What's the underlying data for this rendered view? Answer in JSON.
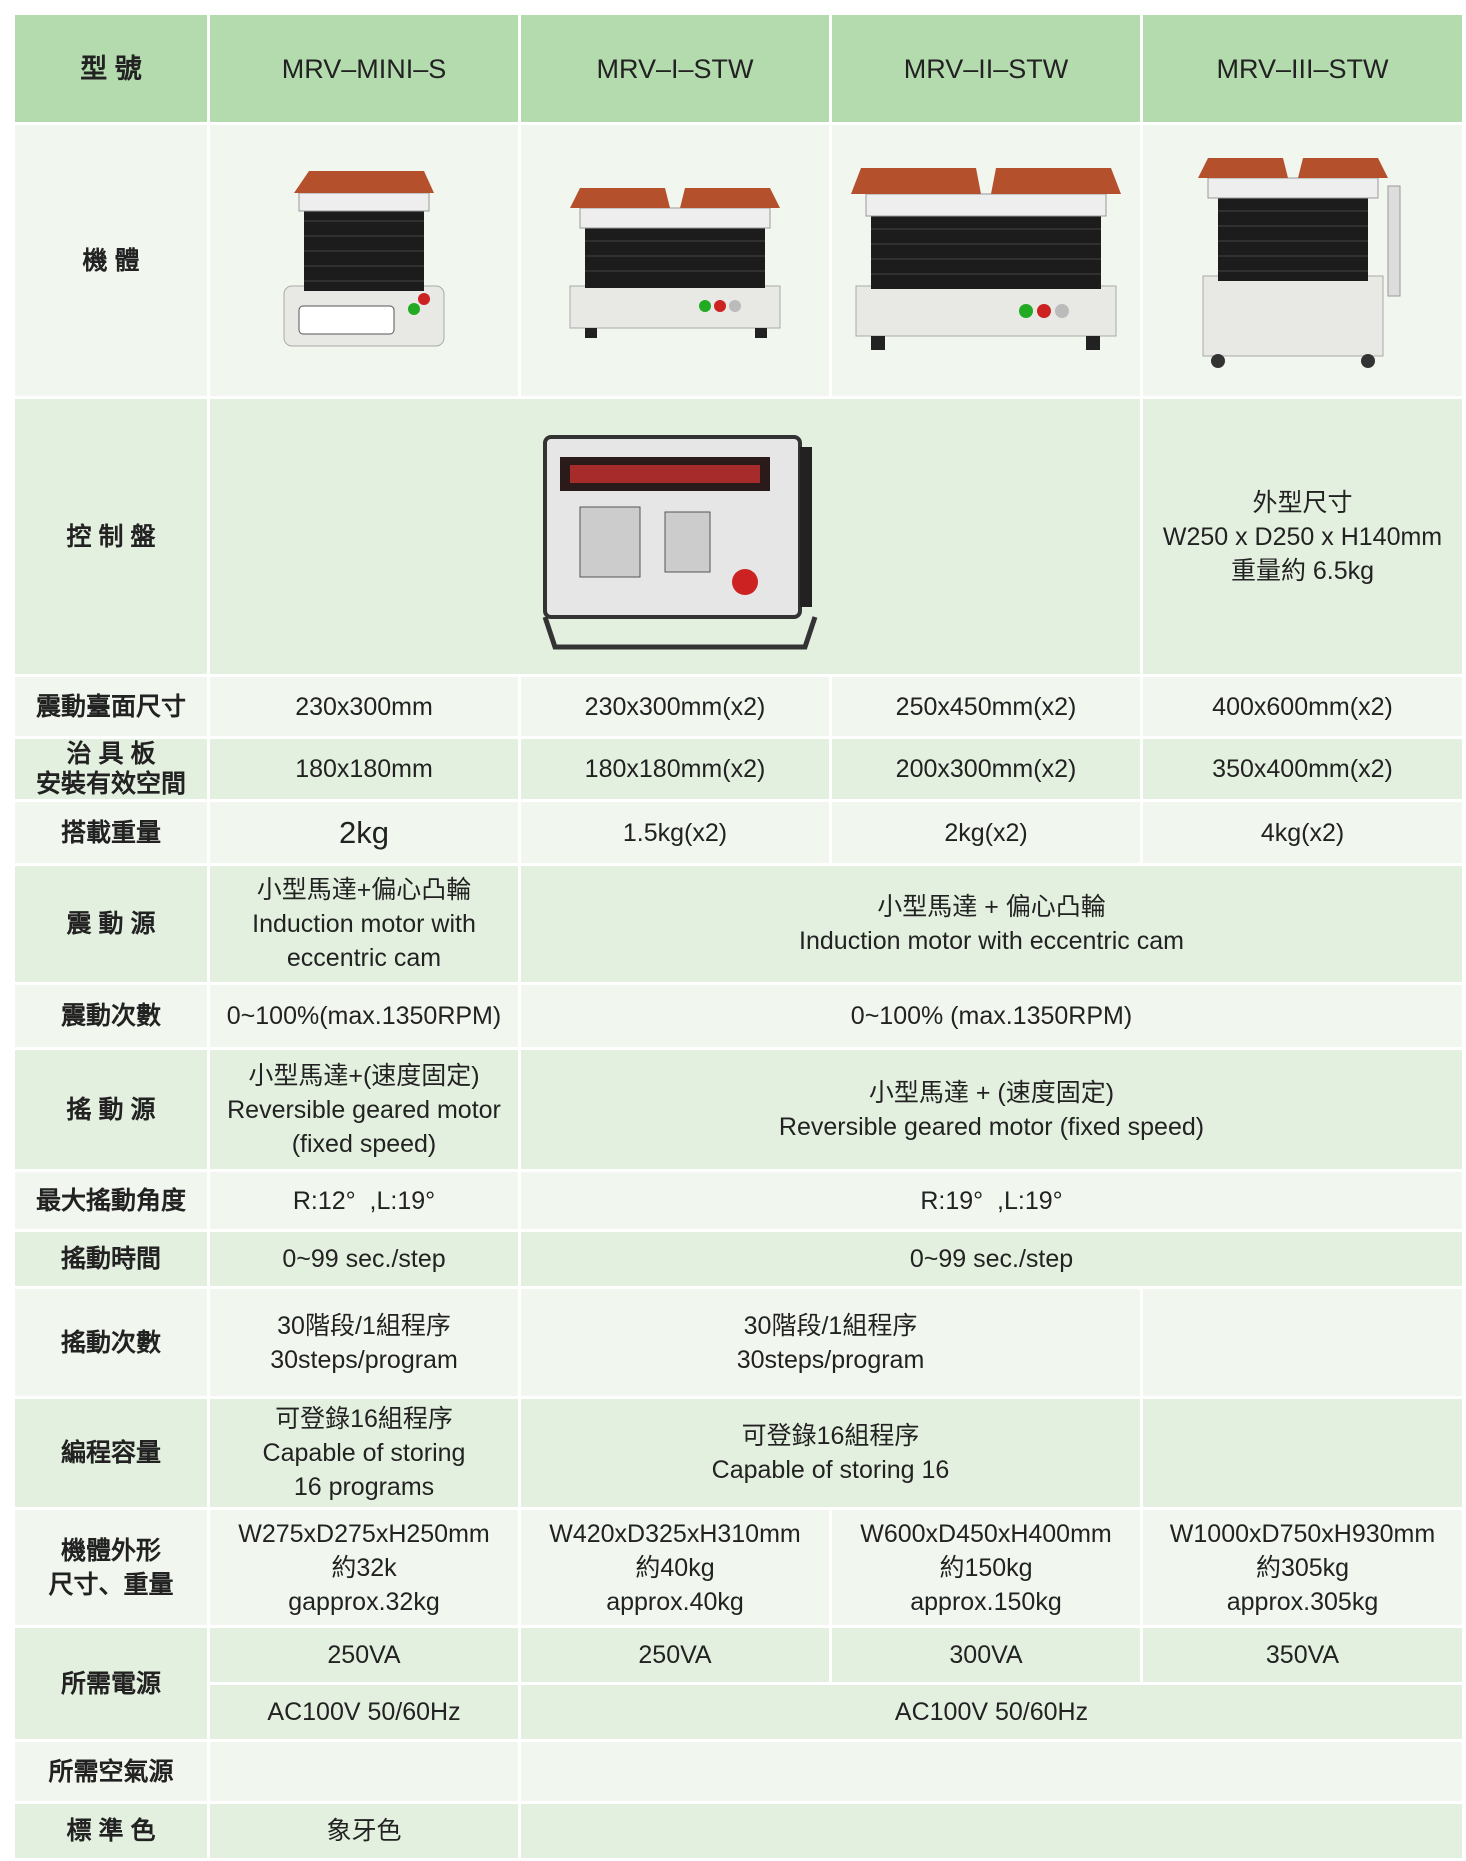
{
  "header": {
    "label": "型 號",
    "models": [
      "MRV–MINI–S",
      "MRV–I–STW",
      "MRV–II–STW",
      "MRV–III–STW"
    ]
  },
  "rows": [
    {
      "label": [
        "機 體"
      ]
    },
    {
      "label": [
        "控 制 盤"
      ],
      "cells": [
        [
          "外型尺寸",
          "W250 x D250 x H140mm",
          "重量約 6.5kg"
        ]
      ]
    },
    {
      "label": [
        "震動臺面尺寸"
      ],
      "cells": [
        [
          "230x300mm"
        ],
        [
          "230x300mm(x2)"
        ],
        [
          "250x450mm(x2)"
        ],
        [
          "400x600mm(x2)"
        ]
      ]
    },
    {
      "label": [
        "治 具 板",
        "安裝有效空間"
      ],
      "cells": [
        [
          "180x180mm"
        ],
        [
          "180x180mm(x2)"
        ],
        [
          "200x300mm(x2)"
        ],
        [
          "350x400mm(x2)"
        ]
      ]
    },
    {
      "label": [
        "搭載重量"
      ],
      "cells": [
        [
          "2kg"
        ],
        [
          "1.5kg(x2)"
        ],
        [
          "2kg(x2)"
        ],
        [
          "4kg(x2)"
        ]
      ]
    },
    {
      "label": [
        "震 動 源"
      ],
      "cells": [
        [
          "小型馬達+偏心凸輪",
          "Induction motor with",
          "eccentric cam"
        ],
        [
          "小型馬達 + 偏心凸輪",
          "Induction motor with eccentric cam"
        ]
      ]
    },
    {
      "label": [
        "震動次數"
      ],
      "cells": [
        [
          "0~100%(max.1350RPM)"
        ],
        [
          "0~100% (max.1350RPM)"
        ]
      ]
    },
    {
      "label": [
        "搖 動 源"
      ],
      "cells": [
        [
          "小型馬達+(速度固定)",
          "Reversible geared motor",
          "(fixed speed)"
        ],
        [
          "小型馬達 + (速度固定)",
          "Reversible geared motor (fixed speed)"
        ]
      ]
    },
    {
      "label": [
        "最大搖動角度"
      ],
      "cells": [
        [
          "R:12°  ,L:19°"
        ],
        [
          "R:19°  ,L:19°"
        ]
      ]
    },
    {
      "label": [
        "搖動時間"
      ],
      "cells": [
        [
          "0~99 sec./step"
        ],
        [
          "0~99 sec./step"
        ]
      ]
    },
    {
      "label": [
        "搖動次數"
      ],
      "cells": [
        [
          "30階段/1組程序",
          "30steps/program"
        ],
        [
          "30階段/1組程序",
          "30steps/program"
        ]
      ]
    },
    {
      "label": [
        "編程容量"
      ],
      "cells": [
        [
          "可登錄16組程序",
          "Capable of storing",
          "16 programs"
        ],
        [
          "可登錄16組程序",
          "Capable of storing 16"
        ]
      ]
    },
    {
      "label": [
        "機體外形",
        "尺寸、重量"
      ],
      "cells": [
        [
          "W275xD275xH250mm",
          "約32k",
          "gapprox.32kg"
        ],
        [
          "W420xD325xH310mm",
          "約40kg",
          "approx.40kg"
        ],
        [
          "W600xD450xH400mm",
          "約150kg",
          "approx.150kg"
        ],
        [
          "W1000xD750xH930mm",
          "約305kg",
          "approx.305kg"
        ]
      ]
    },
    {
      "label": [
        "所需電源"
      ],
      "cells": [
        [
          "250VA"
        ],
        [
          "250VA"
        ],
        [
          "300VA"
        ],
        [
          "350VA"
        ],
        [
          "AC100V 50/60Hz"
        ],
        [
          "AC100V 50/60Hz"
        ]
      ]
    },
    {
      "label": [
        "所需空氣源"
      ]
    },
    {
      "label": [
        "標 準 色"
      ],
      "cells": [
        [
          "象牙色"
        ]
      ]
    }
  ]
}
